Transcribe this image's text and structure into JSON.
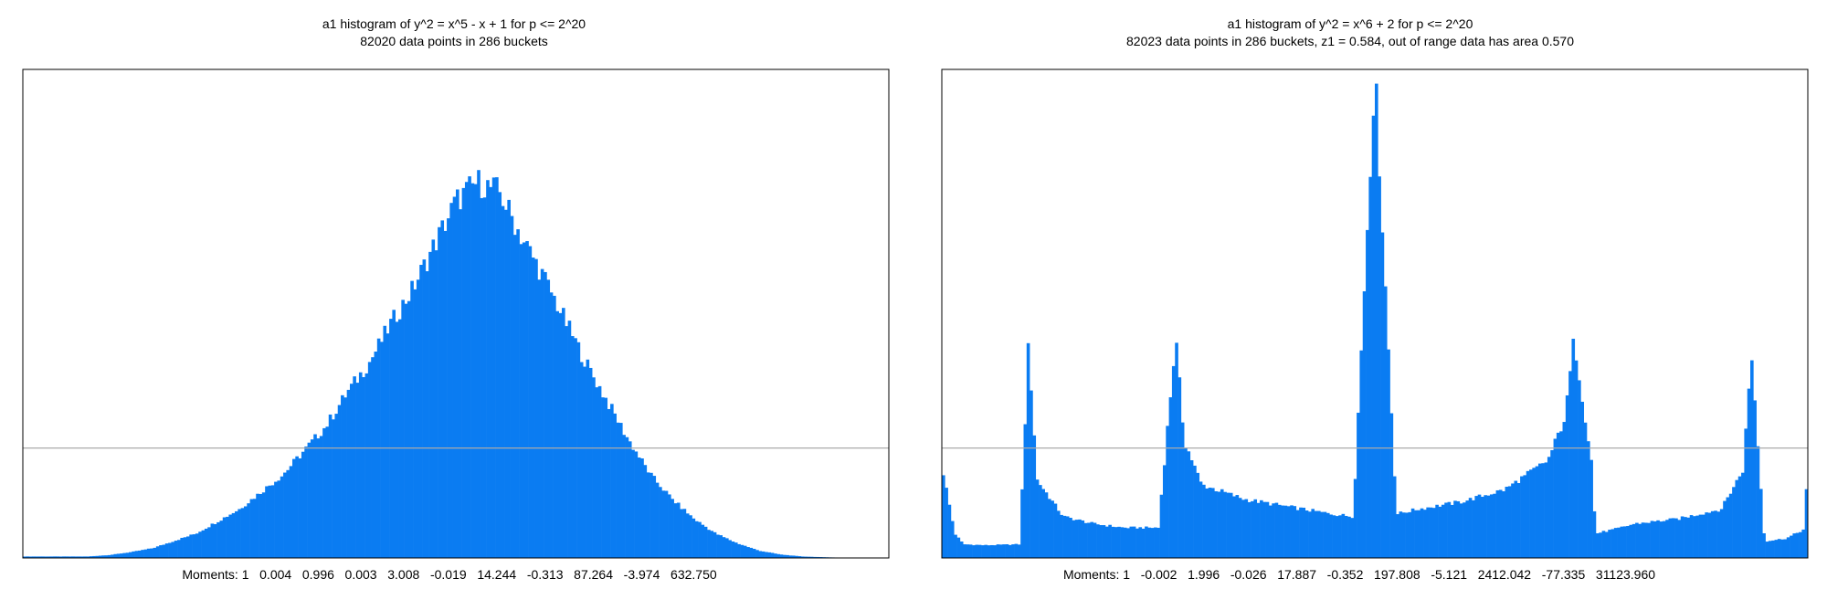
{
  "charts": [
    {
      "title": "a1 histogram of y^2 = x^5 - x + 1 for p <= 2^20",
      "subtitle": "82020 data points in 286 buckets",
      "moments": "Moments: 1   0.004   0.996   0.003   3.008   -0.019   14.244   -0.313   87.264   -3.974   632.750"
    },
    {
      "title": "a1 histogram of y^2 = x^6 + 2 for p <= 2^20",
      "subtitle": "82023 data points in 286 buckets, z1 = 0.584, out of range data has area 0.570",
      "moments": "Moments: 1   -0.002   1.996   -0.026   17.887   -0.352   197.808   -5.121   2412.042   -77.335   31123.960"
    }
  ],
  "colors": {
    "bar": "#0a7cf2",
    "frame": "#000000",
    "reference_line": "#aaaaaa"
  },
  "chart_data": [
    {
      "type": "bar",
      "title": "a1 histogram of y^2 = x^5 - x + 1 for p <= 2^20",
      "subtitle": "82020 data points in 286 buckets",
      "xlim": [
        -1,
        1
      ],
      "ylim": [
        0,
        1.0
      ],
      "reference_line": 0.225,
      "x": [
        -0.85,
        -0.8,
        -0.75,
        -0.7,
        -0.65,
        -0.6,
        -0.55,
        -0.5,
        -0.45,
        -0.4,
        -0.35,
        -0.3,
        -0.25,
        -0.2,
        -0.15,
        -0.1,
        -0.05,
        0,
        0.05,
        0.1,
        0.15,
        0.2,
        0.25,
        0.3,
        0.35,
        0.4,
        0.45,
        0.5,
        0.55,
        0.6,
        0.65,
        0.7,
        0.75,
        0.8,
        0.85,
        0.9
      ],
      "values": [
        0.003,
        0.006,
        0.012,
        0.02,
        0.035,
        0.05,
        0.075,
        0.1,
        0.135,
        0.17,
        0.22,
        0.27,
        0.34,
        0.4,
        0.48,
        0.55,
        0.64,
        0.73,
        0.77,
        0.75,
        0.66,
        0.58,
        0.49,
        0.4,
        0.32,
        0.24,
        0.17,
        0.12,
        0.08,
        0.05,
        0.03,
        0.015,
        0.007,
        0.003,
        0.0015,
        0.0005
      ],
      "grid": false
    },
    {
      "type": "bar",
      "title": "a1 histogram of y^2 = x^6 + 2 for p <= 2^20",
      "subtitle": "82023 data points in 286 buckets, z1 = 0.584, out of range data has area 0.570",
      "xlim": [
        -1,
        1
      ],
      "ylim": [
        0,
        1.0
      ],
      "reference_line": 0.225,
      "x": [
        -1.0,
        -0.97,
        -0.95,
        -0.9,
        -0.82,
        -0.8,
        -0.78,
        -0.72,
        -0.65,
        -0.58,
        -0.5,
        -0.46,
        -0.44,
        -0.4,
        -0.3,
        -0.2,
        -0.1,
        -0.05,
        0.0,
        0.05,
        0.1,
        0.2,
        0.3,
        0.4,
        0.44,
        0.46,
        0.5,
        0.51,
        0.56,
        0.6,
        0.7,
        0.8,
        0.85,
        0.87,
        0.9,
        0.95,
        0.99,
        1.0
      ],
      "values": [
        0.19,
        0.05,
        0.028,
        0.026,
        0.028,
        0.44,
        0.16,
        0.085,
        0.07,
        0.062,
        0.062,
        0.45,
        0.24,
        0.15,
        0.12,
        0.105,
        0.09,
        0.085,
        1.0,
        0.09,
        0.1,
        0.115,
        0.14,
        0.2,
        0.29,
        0.45,
        0.2,
        0.05,
        0.06,
        0.07,
        0.08,
        0.1,
        0.18,
        0.42,
        0.034,
        0.04,
        0.058,
        0.18
      ],
      "grid": false
    }
  ]
}
